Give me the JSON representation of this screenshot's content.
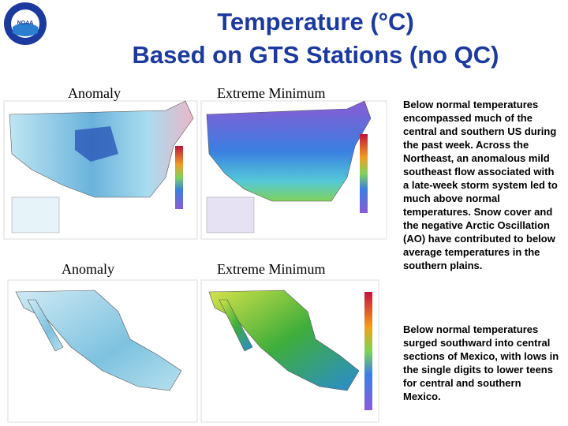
{
  "header": {
    "logo": "NOAA",
    "title": [
      "Temperature (°C)",
      "Based on GTS Stations (no QC)"
    ]
  },
  "panels": [
    {
      "label": "Anomaly"
    },
    {
      "label": "Extreme Minimum"
    },
    {
      "label": "Anomaly"
    },
    {
      "label": "Extreme Minimum"
    }
  ],
  "notes": [
    "Below normal temperatures encompassed much of the central and southern US during the past week. Across the Northeast, an anomalous mild southeast flow associated with a late-week storm system led to much above normal temperatures. Snow cover and the negative Arctic Oscillation (AO) have contributed to below average temperatures in the southern plains.",
    "Below normal temperatures surged southward into central sections of Mexico, with lows in the single digits to lower teens for central and southern Mexico."
  ]
}
